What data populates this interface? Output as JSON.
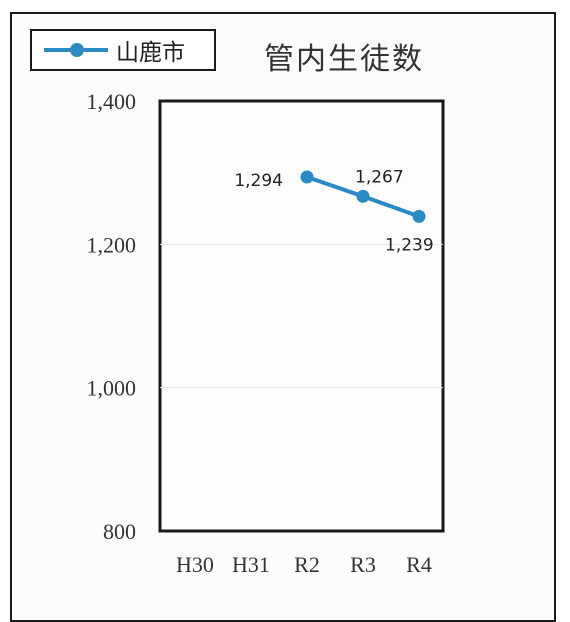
{
  "chart_data": {
    "type": "line",
    "title": "管内生徒数",
    "categories": [
      "H30",
      "H31",
      "R2",
      "R3",
      "R4"
    ],
    "series": [
      {
        "name": "山鹿市",
        "values": [
          null,
          null,
          1294,
          1267,
          1239
        ],
        "color": "#2a8bc4"
      }
    ],
    "data_labels": [
      "1,294",
      "1,267",
      "1,239"
    ],
    "ylim": [
      800,
      1400
    ],
    "yticks": [
      800,
      1000,
      1200,
      1400
    ],
    "ytick_labels": [
      "800",
      "1,000",
      "1,200",
      "1,400"
    ],
    "xlabel": "",
    "ylabel": "",
    "grid": true,
    "legend_position": "top-left"
  }
}
